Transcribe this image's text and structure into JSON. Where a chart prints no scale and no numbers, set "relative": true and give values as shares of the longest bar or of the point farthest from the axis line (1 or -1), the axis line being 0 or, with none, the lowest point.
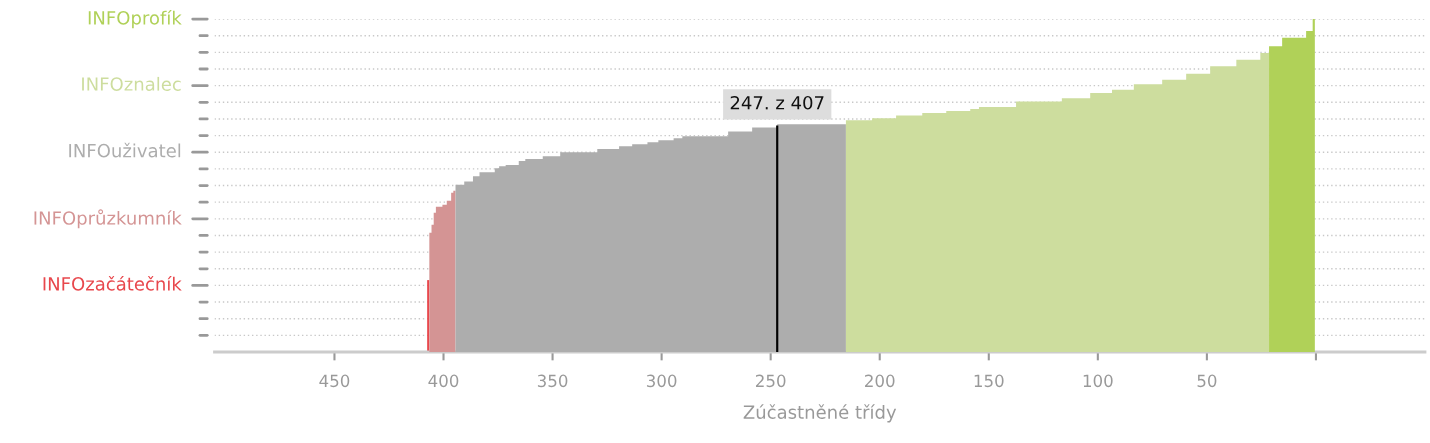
{
  "chart_data": {
    "type": "area",
    "relative": true,
    "xlabel": "Zúčastněné třídy",
    "xlim": [
      505,
      -50
    ],
    "xticks": [
      450,
      400,
      350,
      300,
      250,
      200,
      150,
      100,
      50,
      {
        "value": 0,
        "label": null
      }
    ],
    "annotations": [
      {
        "text": "247. z 407",
        "x": 247,
        "y": 0.68
      }
    ],
    "ref_lines": [
      {
        "axis": "y",
        "value": 0.05,
        "label": null,
        "line_style": "dotted"
      },
      {
        "axis": "y",
        "value": 0.1,
        "label": null,
        "line_style": "dotted"
      },
      {
        "axis": "y",
        "value": 0.15,
        "label": null,
        "line_style": "dotted"
      },
      {
        "axis": "y",
        "value": 0.2,
        "label": "INFOzačátečník",
        "line_style": "dotted"
      },
      {
        "axis": "y",
        "value": 0.25,
        "label": null,
        "line_style": "dotted"
      },
      {
        "axis": "y",
        "value": 0.3,
        "label": null,
        "line_style": "dotted"
      },
      {
        "axis": "y",
        "value": 0.35,
        "label": null,
        "line_style": "dotted"
      },
      {
        "axis": "y",
        "value": 0.4,
        "label": "INFOprůzkumník",
        "line_style": "dotted"
      },
      {
        "axis": "y",
        "value": 0.45,
        "label": null,
        "line_style": "dotted"
      },
      {
        "axis": "y",
        "value": 0.5,
        "label": null,
        "line_style": "dotted"
      },
      {
        "axis": "y",
        "value": 0.55,
        "label": null,
        "line_style": "dotted"
      },
      {
        "axis": "y",
        "value": 0.6,
        "label": "INFOuživatel",
        "line_style": "dotted"
      },
      {
        "axis": "y",
        "value": 0.65,
        "label": null,
        "line_style": "dotted"
      },
      {
        "axis": "y",
        "value": 0.7,
        "label": null,
        "line_style": "dotted"
      },
      {
        "axis": "y",
        "value": 0.75,
        "label": null,
        "line_style": "dotted"
      },
      {
        "axis": "y",
        "value": 0.8,
        "label": "INFOznalec",
        "line_style": "dotted"
      },
      {
        "axis": "y",
        "value": 0.85,
        "label": null,
        "line_style": "dotted"
      },
      {
        "axis": "y",
        "value": 0.9,
        "label": null,
        "line_style": "dotted"
      },
      {
        "axis": "y",
        "value": 0.95,
        "label": null,
        "line_style": "dotted"
      },
      {
        "axis": "y",
        "value": 1,
        "label": "INFOprofík",
        "line_style": "dotted"
      }
    ],
    "series": [
      {
        "type": "bar",
        "color": "#e8474c",
        "x": [
          407
        ],
        "values": [
          0.216
        ]
      },
      {
        "color": "#d49494",
        "x": [
          406,
          405,
          404,
          403,
          402,
          401,
          400,
          399,
          398,
          397,
          396,
          395
        ],
        "values": [
          0.358,
          0.382,
          0.418,
          0.436,
          0.436,
          0.436,
          0.442,
          0.442,
          0.454,
          0.454,
          0.478,
          0.484
        ]
      },
      {
        "color": "#adadad",
        "x": [
          394,
          393,
          392,
          391,
          390,
          389,
          388,
          387,
          386,
          385,
          384,
          383,
          382,
          381,
          380,
          379,
          378,
          377,
          376,
          375,
          374,
          373,
          372,
          371,
          370,
          369,
          368,
          367,
          366,
          365,
          364,
          363,
          362,
          361,
          360,
          359,
          358,
          357,
          356,
          355,
          354,
          353,
          352,
          351,
          350,
          349,
          348,
          347,
          346,
          345,
          344,
          343,
          342,
          341,
          340,
          339,
          338,
          337,
          336,
          335,
          334,
          333,
          332,
          331,
          330,
          329,
          328,
          327,
          326,
          325,
          324,
          323,
          322,
          321,
          320,
          319,
          318,
          317,
          316,
          315,
          314,
          313,
          312,
          311,
          310,
          309,
          308,
          307,
          306,
          305,
          304,
          303,
          302,
          301,
          300,
          299,
          298,
          297,
          296,
          295,
          294,
          293,
          292,
          291,
          290,
          289,
          288,
          287,
          286,
          285,
          284,
          283,
          282,
          281,
          280,
          279,
          278,
          277,
          276,
          275,
          274,
          273,
          272,
          271,
          270,
          269,
          268,
          267,
          266,
          265,
          264,
          263,
          262,
          261,
          260,
          259,
          258,
          257,
          256,
          255,
          254,
          253,
          252,
          251,
          250,
          249,
          248,
          246,
          245,
          244,
          243,
          242,
          241,
          240,
          239,
          238,
          237,
          236,
          235,
          234,
          233,
          232,
          231,
          230,
          229,
          228,
          227,
          226,
          225,
          224,
          223,
          222,
          221,
          220,
          219,
          218,
          217,
          216
        ],
        "values": [
          0.502,
          0.502,
          0.502,
          0.502,
          0.512,
          0.512,
          0.512,
          0.512,
          0.528,
          0.528,
          0.528,
          0.54,
          0.54,
          0.54,
          0.54,
          0.54,
          0.54,
          0.54,
          0.552,
          0.552,
          0.558,
          0.558,
          0.558,
          0.562,
          0.562,
          0.562,
          0.562,
          0.562,
          0.562,
          0.574,
          0.574,
          0.574,
          0.58,
          0.58,
          0.58,
          0.58,
          0.58,
          0.58,
          0.58,
          0.58,
          0.588,
          0.588,
          0.588,
          0.588,
          0.588,
          0.588,
          0.588,
          0.588,
          0.6,
          0.6,
          0.6,
          0.6,
          0.6,
          0.6,
          0.6,
          0.6,
          0.6,
          0.6,
          0.6,
          0.6,
          0.6,
          0.6,
          0.6,
          0.6,
          0.6,
          0.61,
          0.61,
          0.61,
          0.61,
          0.61,
          0.61,
          0.61,
          0.61,
          0.61,
          0.61,
          0.618,
          0.618,
          0.618,
          0.618,
          0.618,
          0.618,
          0.624,
          0.624,
          0.624,
          0.624,
          0.624,
          0.624,
          0.624,
          0.63,
          0.63,
          0.63,
          0.63,
          0.63,
          0.636,
          0.636,
          0.636,
          0.636,
          0.636,
          0.636,
          0.636,
          0.642,
          0.642,
          0.642,
          0.642,
          0.648,
          0.648,
          0.648,
          0.648,
          0.648,
          0.648,
          0.648,
          0.648,
          0.648,
          0.648,
          0.648,
          0.648,
          0.648,
          0.648,
          0.648,
          0.648,
          0.648,
          0.648,
          0.648,
          0.648,
          0.648,
          0.662,
          0.662,
          0.662,
          0.662,
          0.662,
          0.662,
          0.662,
          0.662,
          0.662,
          0.662,
          0.662,
          0.674,
          0.674,
          0.674,
          0.674,
          0.674,
          0.674,
          0.674,
          0.674,
          0.674,
          0.674,
          0.674,
          0.684,
          0.684,
          0.684,
          0.684,
          0.684,
          0.684,
          0.684,
          0.684,
          0.684,
          0.684,
          0.684,
          0.684,
          0.684,
          0.684,
          0.684,
          0.684,
          0.684,
          0.684,
          0.684,
          0.684,
          0.684,
          0.684,
          0.684,
          0.684,
          0.684,
          0.684,
          0.684,
          0.684,
          0.684,
          0.684,
          0.684
        ]
      },
      {
        "color": "#cddd9e",
        "x": [
          215,
          214,
          213,
          212,
          211,
          210,
          209,
          208,
          207,
          206,
          205,
          204,
          203,
          202,
          201,
          200,
          199,
          198,
          197,
          196,
          195,
          194,
          193,
          192,
          191,
          190,
          189,
          188,
          187,
          186,
          185,
          184,
          183,
          182,
          181,
          180,
          179,
          178,
          177,
          176,
          175,
          174,
          173,
          172,
          171,
          170,
          169,
          168,
          167,
          166,
          165,
          164,
          163,
          162,
          161,
          160,
          159,
          158,
          157,
          156,
          155,
          154,
          153,
          152,
          151,
          150,
          149,
          148,
          147,
          146,
          145,
          144,
          143,
          142,
          141,
          140,
          139,
          138,
          137,
          136,
          135,
          134,
          133,
          132,
          131,
          130,
          129,
          128,
          127,
          126,
          125,
          124,
          123,
          122,
          121,
          120,
          119,
          118,
          117,
          116,
          115,
          114,
          113,
          112,
          111,
          110,
          109,
          108,
          107,
          106,
          105,
          104,
          103,
          102,
          101,
          100,
          99,
          98,
          97,
          96,
          95,
          94,
          93,
          92,
          91,
          90,
          89,
          88,
          87,
          86,
          85,
          84,
          83,
          82,
          81,
          80,
          79,
          78,
          77,
          76,
          75,
          74,
          73,
          72,
          71,
          70,
          69,
          68,
          67,
          66,
          65,
          64,
          63,
          62,
          61,
          60,
          59,
          58,
          57,
          56,
          55,
          54,
          53,
          52,
          51,
          50,
          49,
          48,
          47,
          46,
          45,
          44,
          43,
          42,
          41,
          40,
          39,
          38,
          37,
          36,
          35,
          34,
          33,
          32,
          31,
          30,
          29,
          28,
          27,
          26,
          25,
          24,
          23,
          22
        ],
        "values": [
          0.696,
          0.696,
          0.696,
          0.696,
          0.696,
          0.696,
          0.696,
          0.696,
          0.696,
          0.696,
          0.696,
          0.696,
          0.702,
          0.702,
          0.702,
          0.702,
          0.702,
          0.702,
          0.702,
          0.702,
          0.702,
          0.702,
          0.702,
          0.71,
          0.71,
          0.71,
          0.71,
          0.71,
          0.71,
          0.71,
          0.71,
          0.71,
          0.71,
          0.71,
          0.71,
          0.718,
          0.718,
          0.718,
          0.718,
          0.718,
          0.718,
          0.718,
          0.718,
          0.718,
          0.718,
          0.718,
          0.724,
          0.724,
          0.724,
          0.724,
          0.724,
          0.724,
          0.724,
          0.724,
          0.724,
          0.724,
          0.724,
          0.73,
          0.73,
          0.73,
          0.73,
          0.736,
          0.736,
          0.736,
          0.736,
          0.736,
          0.736,
          0.736,
          0.736,
          0.736,
          0.736,
          0.736,
          0.736,
          0.736,
          0.736,
          0.736,
          0.736,
          0.736,
          0.752,
          0.752,
          0.752,
          0.752,
          0.752,
          0.752,
          0.752,
          0.752,
          0.752,
          0.752,
          0.752,
          0.752,
          0.752,
          0.752,
          0.752,
          0.752,
          0.752,
          0.752,
          0.752,
          0.752,
          0.752,
          0.762,
          0.762,
          0.762,
          0.762,
          0.762,
          0.762,
          0.762,
          0.762,
          0.762,
          0.762,
          0.762,
          0.762,
          0.762,
          0.778,
          0.778,
          0.778,
          0.778,
          0.778,
          0.778,
          0.778,
          0.778,
          0.778,
          0.778,
          0.788,
          0.788,
          0.788,
          0.788,
          0.788,
          0.788,
          0.788,
          0.788,
          0.788,
          0.788,
          0.804,
          0.804,
          0.804,
          0.804,
          0.804,
          0.804,
          0.804,
          0.804,
          0.804,
          0.804,
          0.804,
          0.804,
          0.804,
          0.818,
          0.818,
          0.818,
          0.818,
          0.818,
          0.818,
          0.818,
          0.818,
          0.818,
          0.818,
          0.818,
          0.836,
          0.836,
          0.836,
          0.836,
          0.836,
          0.836,
          0.836,
          0.836,
          0.836,
          0.836,
          0.836,
          0.858,
          0.858,
          0.858,
          0.858,
          0.858,
          0.858,
          0.858,
          0.858,
          0.858,
          0.858,
          0.858,
          0.858,
          0.878,
          0.878,
          0.878,
          0.878,
          0.878,
          0.878,
          0.878,
          0.878,
          0.878,
          0.878,
          0.878,
          0.898,
          0.898,
          0.898,
          0.898
        ]
      },
      {
        "color": "#b0d158",
        "x": [
          21,
          20,
          19,
          18,
          17,
          16,
          15,
          14,
          13,
          12,
          11,
          10,
          9,
          8,
          7,
          6,
          5,
          4,
          3,
          2,
          1
        ],
        "values": [
          0.918,
          0.918,
          0.918,
          0.918,
          0.918,
          0.918,
          0.944,
          0.944,
          0.944,
          0.944,
          0.944,
          0.944,
          0.944,
          0.944,
          0.944,
          0.944,
          0.944,
          0.964,
          0.964,
          0.964,
          1
        ]
      },
      {
        "type": "bar",
        "color": "#000000",
        "x": [
          247
        ],
        "values": [
          0.68
        ]
      }
    ]
  }
}
